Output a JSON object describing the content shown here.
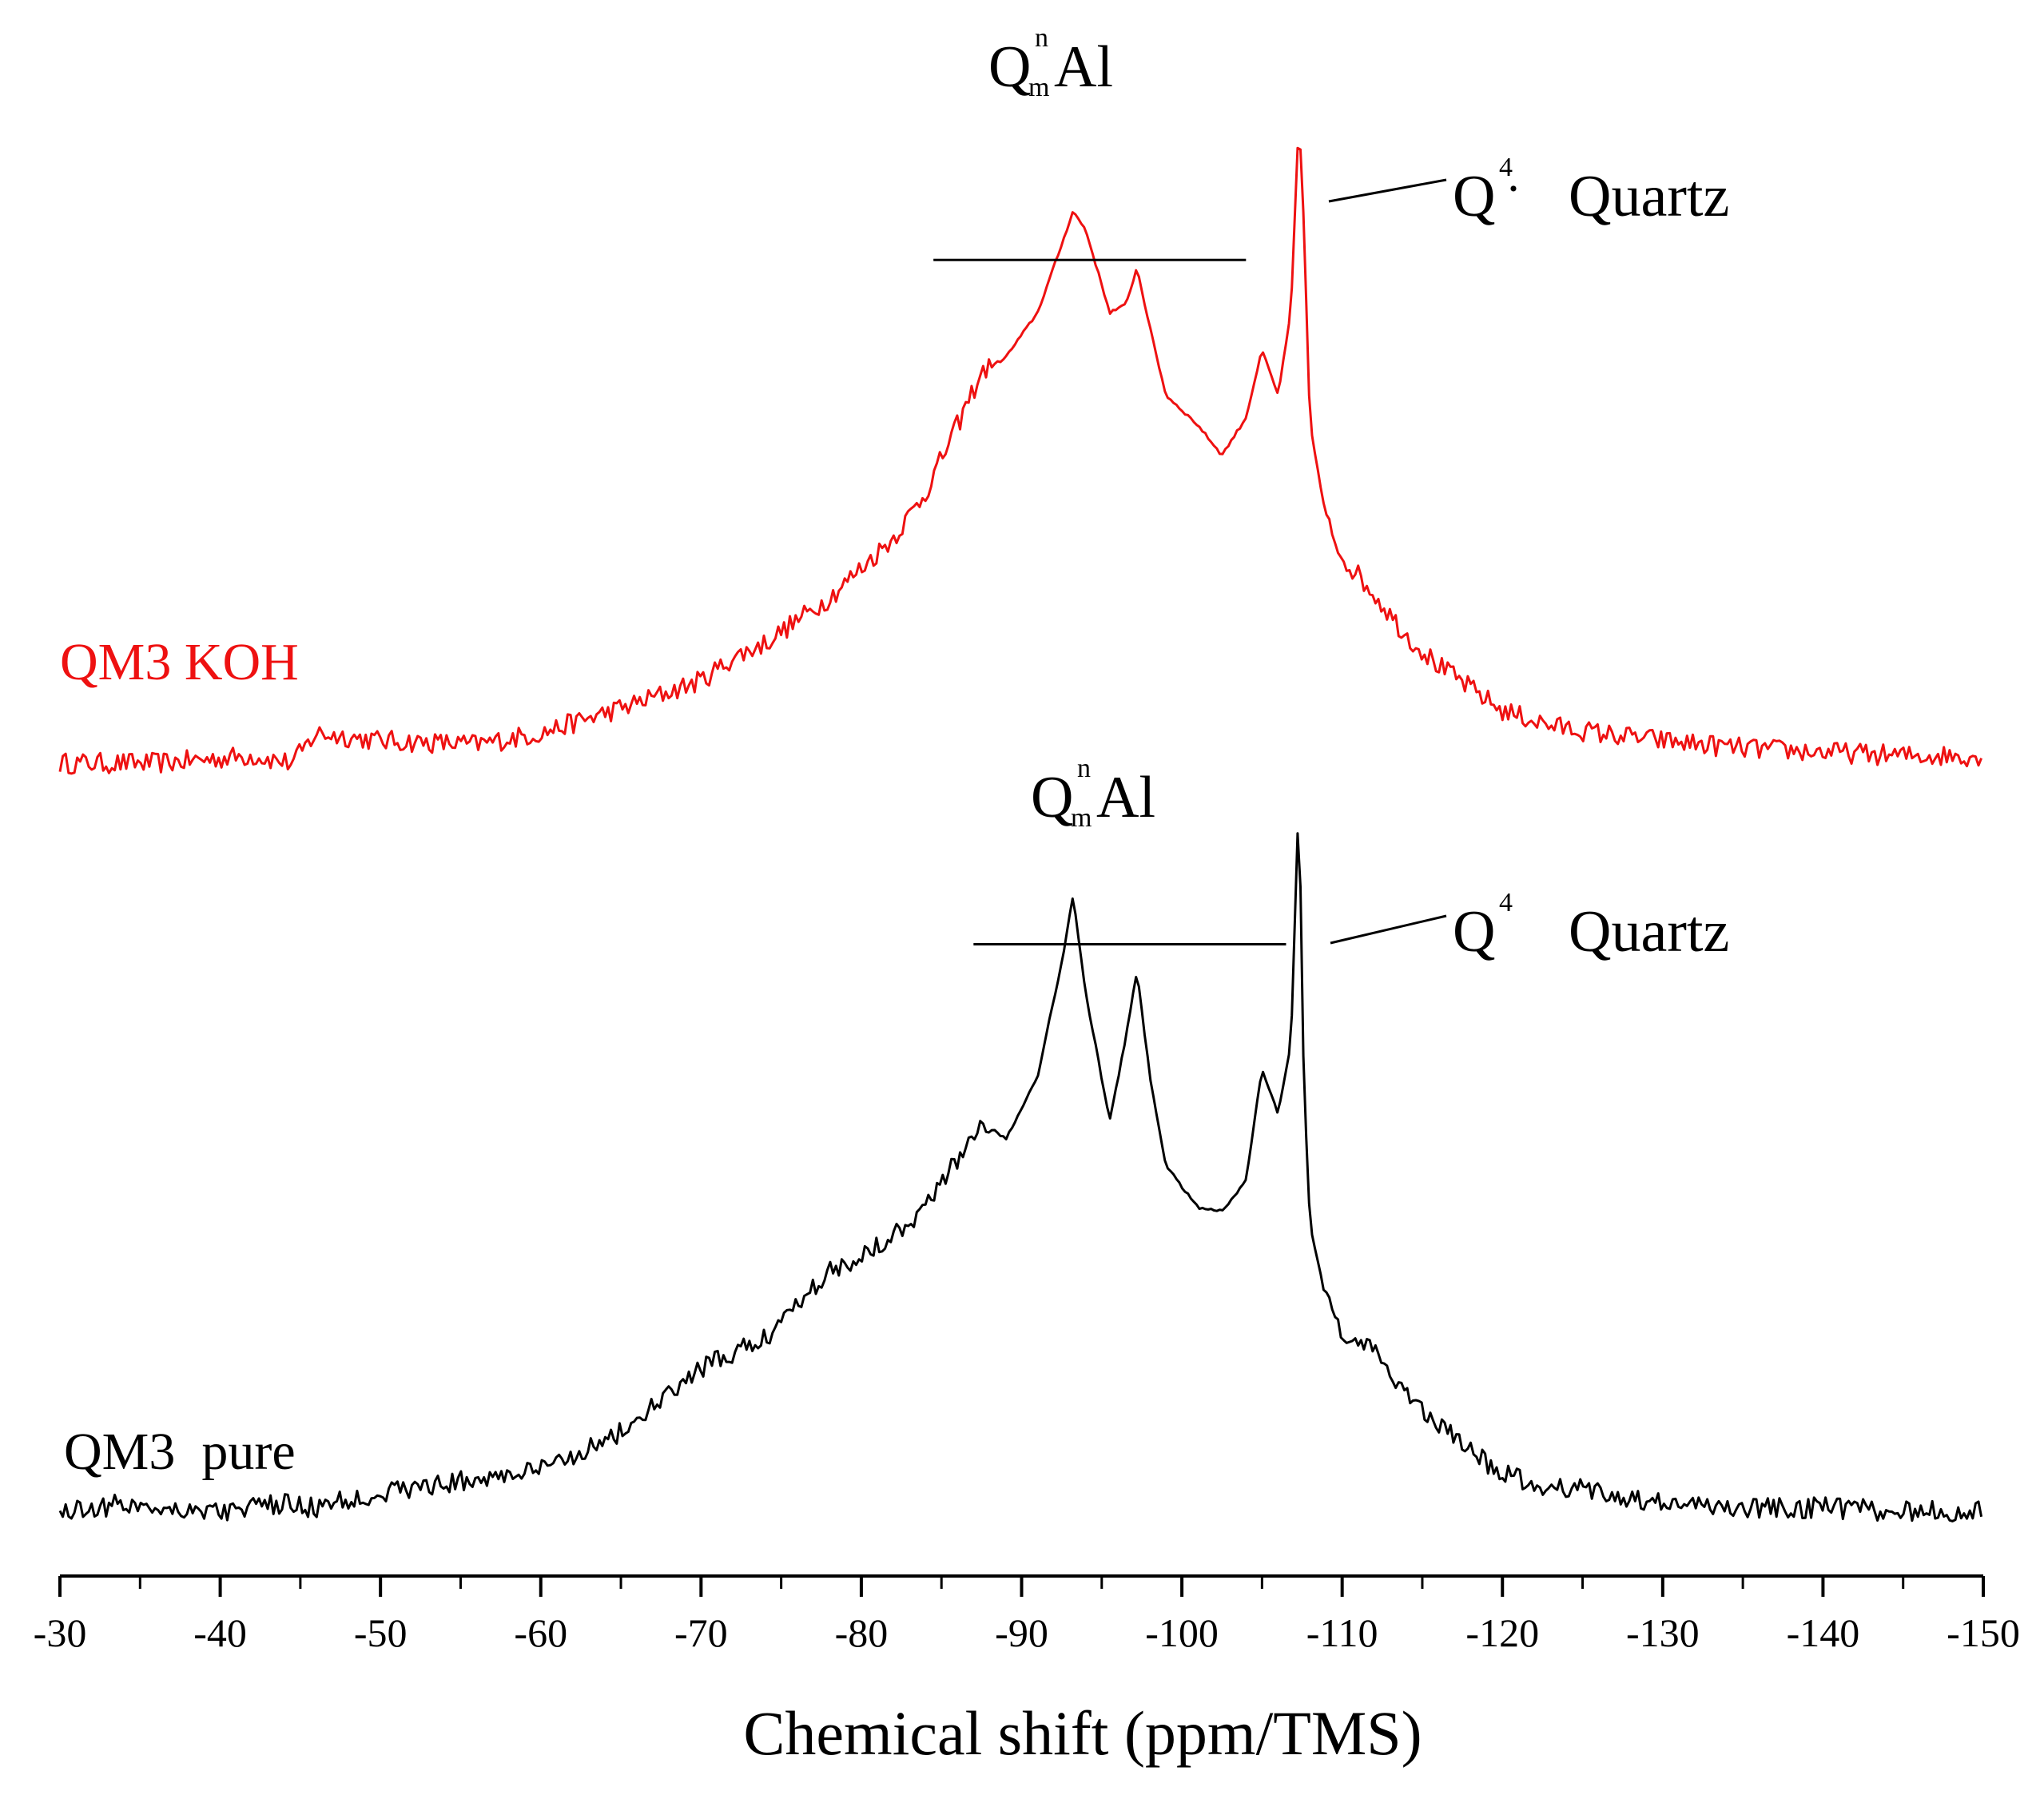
{
  "chart_data": {
    "type": "line",
    "title": "",
    "xlabel": "Chemical shift (ppm/TMS)",
    "ylabel": "",
    "xlim": [
      -30,
      -150
    ],
    "ylim": [
      0,
      3.0
    ],
    "x_ticks": [
      "-30",
      "-40",
      "-50",
      "-60",
      "-70",
      "-80",
      "-90",
      "-100",
      "-110",
      "-120",
      "-130",
      "-140",
      "-150"
    ],
    "x_tick_values": [
      -30,
      -40,
      -50,
      -60,
      -70,
      -80,
      -90,
      -100,
      -110,
      -120,
      -130,
      -140,
      -150
    ],
    "grid": false,
    "series": [
      {
        "name": "QM3 KOH",
        "color": "#ee1111",
        "offset": 1.55,
        "x": [
          -30,
          -36,
          -42,
          -44.5,
          -46,
          -50,
          -56,
          -60,
          -63,
          -66,
          -70,
          -72,
          -74,
          -76,
          -78,
          -80,
          -82,
          -84,
          -86,
          -87.5,
          -89,
          -91,
          -92.5,
          -93.2,
          -94,
          -95.5,
          -96.5,
          -97.2,
          -98,
          -99,
          -101,
          -102.5,
          -104,
          -105,
          -106,
          -106.8,
          -107.3,
          -107.6,
          -108,
          -109,
          -110,
          -112,
          -114,
          -116,
          -118,
          -120,
          -123,
          -126,
          -130,
          -135,
          -140,
          -145,
          -150
        ],
        "y": [
          0.0,
          0.0,
          0.02,
          0.0,
          0.08,
          0.06,
          0.05,
          0.08,
          0.12,
          0.16,
          0.22,
          0.28,
          0.32,
          0.38,
          0.44,
          0.52,
          0.6,
          0.72,
          0.9,
          1.04,
          1.08,
          1.2,
          1.38,
          1.47,
          1.42,
          1.2,
          1.22,
          1.32,
          1.16,
          0.98,
          0.9,
          0.82,
          0.92,
          1.1,
          0.98,
          1.2,
          1.72,
          1.45,
          0.9,
          0.65,
          0.55,
          0.45,
          0.34,
          0.26,
          0.2,
          0.14,
          0.1,
          0.08,
          0.06,
          0.04,
          0.03,
          0.02,
          0.02
        ]
      },
      {
        "name": "QM3  pure",
        "color": "#000000",
        "offset": 0.0,
        "x": [
          -30,
          -34,
          -40,
          -44,
          -46,
          -50,
          -55,
          -60,
          -65,
          -68,
          -70,
          -72,
          -74,
          -76,
          -78,
          -80,
          -82,
          -84,
          -86,
          -87.5,
          -89,
          -91,
          -92.5,
          -93.2,
          -94,
          -95.5,
          -96.5,
          -97.2,
          -98,
          -99,
          -101,
          -102.5,
          -104,
          -105,
          -106,
          -106.8,
          -107.3,
          -107.6,
          -108,
          -109,
          -110,
          -112,
          -114,
          -116,
          -118,
          -120,
          -122,
          -125,
          -130,
          -135,
          -140,
          -145,
          -150
        ],
        "y": [
          0.04,
          0.06,
          0.04,
          0.06,
          0.05,
          0.09,
          0.12,
          0.15,
          0.25,
          0.35,
          0.42,
          0.46,
          0.5,
          0.6,
          0.68,
          0.72,
          0.78,
          0.85,
          0.98,
          1.08,
          1.03,
          1.2,
          1.5,
          1.68,
          1.42,
          1.08,
          1.3,
          1.48,
          1.2,
          0.96,
          0.85,
          0.84,
          0.92,
          1.22,
          1.1,
          1.28,
          1.95,
          1.2,
          0.8,
          0.6,
          0.52,
          0.46,
          0.36,
          0.27,
          0.2,
          0.14,
          0.11,
          0.1,
          0.06,
          0.05,
          0.05,
          0.04,
          0.04
        ]
      }
    ],
    "annotations": [
      {
        "series": "QM3 KOH",
        "main": "Q",
        "sup": "n",
        "sub": "m",
        "suffix": "Al",
        "span_x": [
          -84.5,
          -104
        ],
        "line_value": 1.34
      },
      {
        "series": "QM3 KOH",
        "main": "Q",
        "sup": "4",
        "suffix": "Quartz",
        "dot": "·"
      },
      {
        "series": "QM3  pure",
        "main": "Q",
        "sup": "n",
        "sub": "m",
        "suffix": "Al",
        "span_x": [
          -87,
          -106.5
        ],
        "line_value": 1.55
      },
      {
        "series": "QM3  pure",
        "main": "Q",
        "sup": "4",
        "suffix": "Quartz"
      }
    ]
  }
}
